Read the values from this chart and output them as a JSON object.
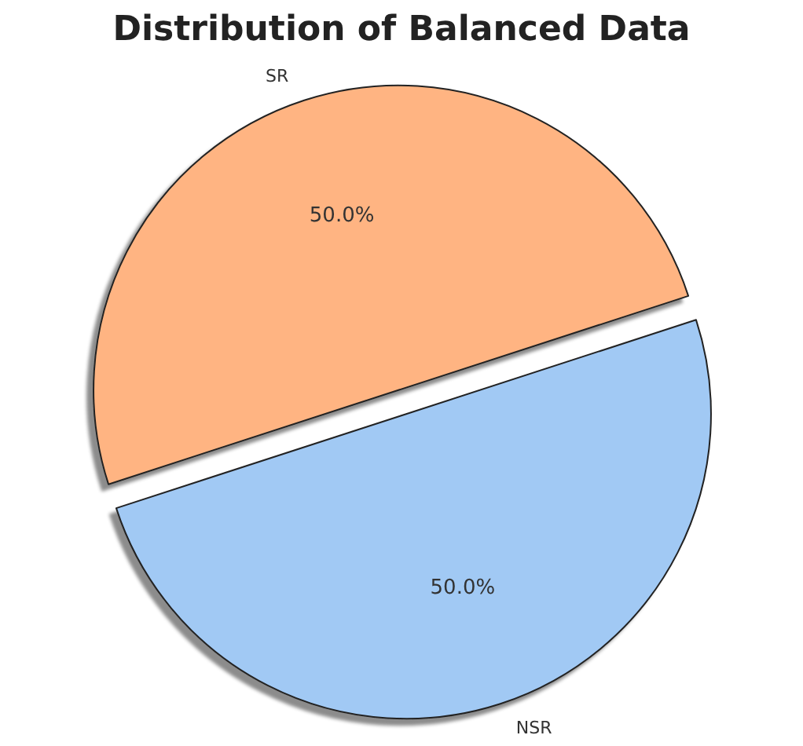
{
  "chart_data": {
    "type": "pie",
    "title": "Distribution of Balanced Data",
    "categories": [
      "SR",
      "NSR"
    ],
    "values": [
      50,
      50
    ],
    "colors": [
      "#ffb482",
      "#a1c9f4"
    ],
    "value_labels": [
      "50.0%",
      "50.0%"
    ]
  }
}
